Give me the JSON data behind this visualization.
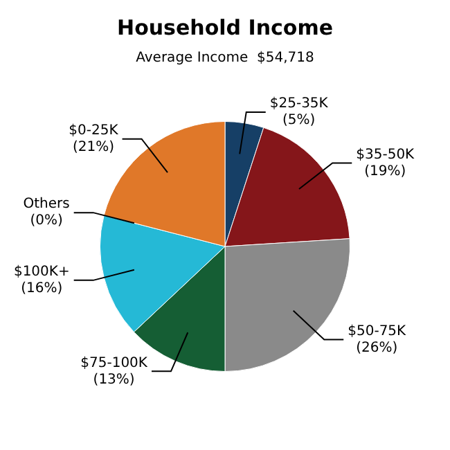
{
  "chart_data": {
    "type": "pie",
    "title": "Household Income",
    "subtitle": "Average Income  $54,718",
    "categories": [
      "$25-35K",
      "$35-50K",
      "$50-75K",
      "$75-100K",
      "$100K+",
      "Others",
      "$0-25K"
    ],
    "values": [
      5,
      19,
      26,
      13,
      16,
      0,
      21
    ],
    "value_labels": [
      "(5%)",
      "(19%)",
      "(26%)",
      "(13%)",
      "(16%)",
      "(0%)",
      "(21%)"
    ],
    "colors": [
      "#163f66",
      "#85161a",
      "#8a8a8a",
      "#155e34",
      "#25b9d6",
      "#999999",
      "#e07829"
    ],
    "legend": false
  }
}
